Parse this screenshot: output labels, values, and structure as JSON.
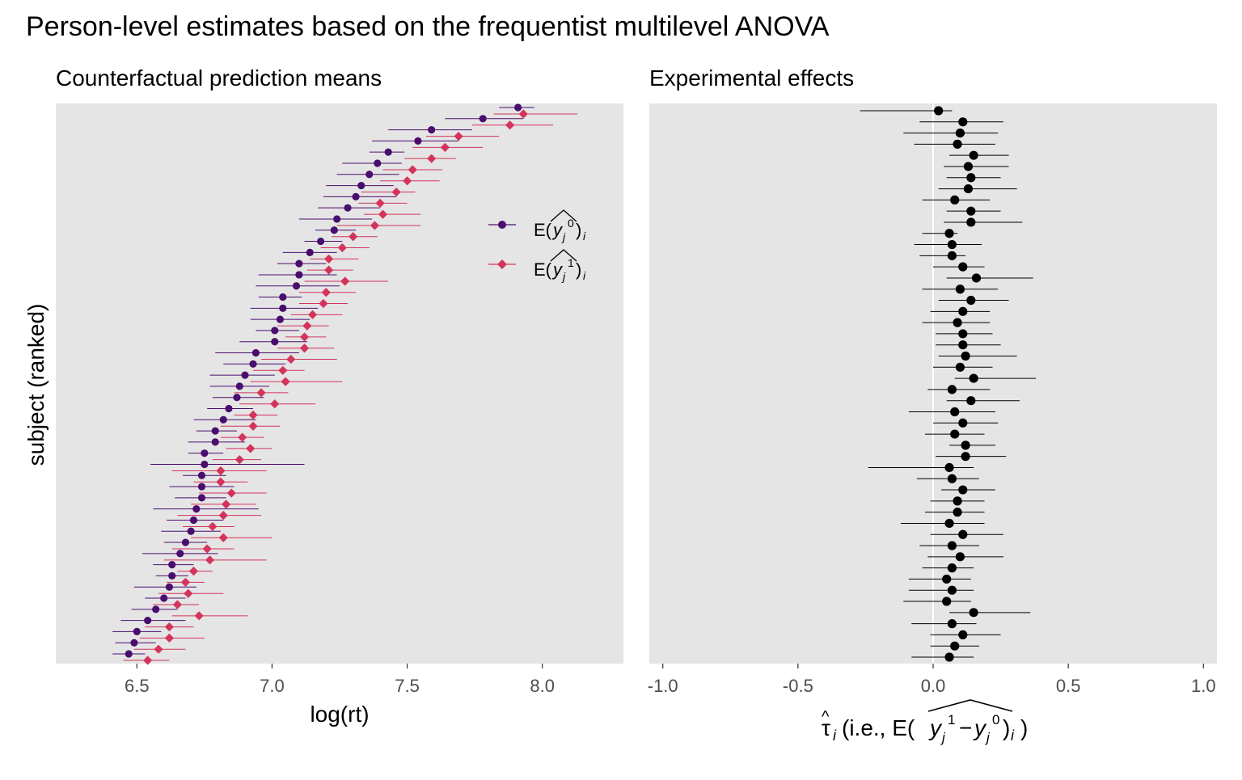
{
  "title": "Person-level estimates based on the frequentist multilevel ANOVA",
  "y_axis_label": "subject (ranked)",
  "colors": {
    "y0": "#4a0d6e",
    "y1": "#d4345c",
    "effect": "#000000",
    "panel_bg": "#e5e5e5",
    "grid": "#ffffff"
  },
  "chart_data": [
    {
      "type": "scatter",
      "subtitle": "Counterfactual prediction means",
      "xlabel": "log(rt)",
      "ylabel": "subject (ranked)",
      "xlim": [
        6.2,
        8.3
      ],
      "xticks": [
        "6.5",
        "7.0",
        "7.5",
        "8.0"
      ],
      "grid": false,
      "legend": {
        "position": "right-inside",
        "items": [
          "E(y_j^0)_i",
          "E(y_j^1)_i"
        ]
      },
      "series": [
        {
          "name": "E(y_j^0)_i",
          "marker": "circle",
          "values": [
            7.91,
            7.78,
            7.59,
            7.54,
            7.43,
            7.39,
            7.36,
            7.33,
            7.31,
            7.28,
            7.24,
            7.23,
            7.18,
            7.14,
            7.1,
            7.1,
            7.09,
            7.04,
            7.04,
            7.03,
            7.01,
            7.01,
            6.94,
            6.93,
            6.9,
            6.88,
            6.87,
            6.84,
            6.82,
            6.79,
            6.79,
            6.75,
            6.75,
            6.74,
            6.74,
            6.74,
            6.72,
            6.71,
            6.7,
            6.68,
            6.66,
            6.63,
            6.63,
            6.62,
            6.6,
            6.57,
            6.54,
            6.5,
            6.49,
            6.47
          ],
          "ci_low": [
            7.84,
            7.64,
            7.43,
            7.37,
            7.36,
            7.26,
            7.24,
            7.2,
            7.19,
            7.17,
            7.1,
            7.16,
            7.12,
            7.04,
            7.02,
            6.95,
            6.94,
            6.95,
            6.92,
            6.92,
            6.94,
            6.88,
            6.79,
            6.82,
            6.77,
            6.77,
            6.78,
            6.76,
            6.71,
            6.72,
            6.69,
            6.69,
            6.55,
            6.67,
            6.62,
            6.64,
            6.56,
            6.61,
            6.59,
            6.6,
            6.52,
            6.56,
            6.57,
            6.49,
            6.53,
            6.48,
            6.44,
            6.41,
            6.42,
            6.41
          ],
          "ci_high": [
            7.97,
            7.93,
            7.74,
            7.69,
            7.49,
            7.48,
            7.47,
            7.45,
            7.46,
            7.4,
            7.37,
            7.31,
            7.26,
            7.24,
            7.2,
            7.24,
            7.25,
            7.11,
            7.17,
            7.14,
            7.1,
            7.13,
            7.1,
            7.05,
            7.01,
            6.99,
            6.97,
            6.93,
            6.94,
            6.87,
            6.9,
            6.82,
            7.12,
            6.83,
            6.86,
            6.83,
            6.95,
            6.82,
            6.81,
            6.76,
            6.8,
            6.71,
            6.69,
            6.72,
            6.68,
            6.65,
            6.68,
            6.59,
            6.57,
            6.53
          ]
        },
        {
          "name": "E(y_j^1)_i",
          "marker": "diamond",
          "values": [
            7.93,
            7.88,
            7.69,
            7.64,
            7.59,
            7.52,
            7.5,
            7.46,
            7.4,
            7.41,
            7.38,
            7.3,
            7.26,
            7.21,
            7.21,
            7.27,
            7.2,
            7.19,
            7.15,
            7.13,
            7.12,
            7.12,
            7.07,
            7.04,
            7.05,
            6.96,
            7.01,
            6.93,
            6.93,
            6.89,
            6.92,
            6.88,
            6.81,
            6.81,
            6.85,
            6.83,
            6.82,
            6.78,
            6.82,
            6.76,
            6.77,
            6.71,
            6.68,
            6.69,
            6.65,
            6.73,
            6.62,
            6.62,
            6.58,
            6.54
          ],
          "ci_low": [
            7.82,
            7.74,
            7.57,
            7.52,
            7.49,
            7.41,
            7.4,
            7.33,
            7.32,
            7.34,
            7.24,
            7.22,
            7.18,
            7.14,
            7.13,
            7.12,
            7.1,
            7.1,
            7.07,
            7.02,
            7.05,
            7.02,
            6.96,
            6.93,
            6.92,
            6.86,
            6.88,
            6.86,
            6.81,
            6.81,
            6.83,
            6.78,
            6.63,
            6.71,
            6.73,
            6.7,
            6.65,
            6.67,
            6.7,
            6.63,
            6.6,
            6.65,
            6.61,
            6.58,
            6.56,
            6.63,
            6.53,
            6.51,
            6.49,
            6.45
          ],
          "ci_high": [
            8.13,
            8.04,
            7.84,
            7.78,
            7.68,
            7.63,
            7.62,
            7.53,
            7.5,
            7.55,
            7.55,
            7.39,
            7.36,
            7.32,
            7.3,
            7.43,
            7.31,
            7.28,
            7.26,
            7.21,
            7.2,
            7.23,
            7.24,
            7.12,
            7.26,
            7.06,
            7.16,
            7.02,
            7.03,
            6.97,
            7.0,
            6.96,
            6.98,
            6.91,
            6.98,
            6.94,
            6.96,
            6.86,
            7.0,
            6.86,
            6.98,
            6.78,
            6.75,
            6.82,
            6.73,
            6.91,
            6.71,
            6.75,
            6.68,
            6.62
          ]
        }
      ]
    },
    {
      "type": "scatter",
      "subtitle": "Experimental effects",
      "xlabel": "τ̂_i (i.e., E(y_j^1 − y_j^0)_i)",
      "xlim": [
        -1.05,
        1.05
      ],
      "xticks": [
        "-1.0",
        "-0.5",
        "0.0",
        "0.5",
        "1.0"
      ],
      "vline": 0,
      "grid": false,
      "series": [
        {
          "name": "",
          "marker": "circle",
          "values": [
            0.02,
            0.11,
            0.1,
            0.09,
            0.15,
            0.13,
            0.14,
            0.13,
            0.08,
            0.14,
            0.14,
            0.06,
            0.07,
            0.07,
            0.11,
            0.16,
            0.1,
            0.14,
            0.11,
            0.09,
            0.11,
            0.11,
            0.12,
            0.1,
            0.15,
            0.07,
            0.14,
            0.08,
            0.11,
            0.08,
            0.12,
            0.12,
            0.06,
            0.07,
            0.11,
            0.09,
            0.09,
            0.06,
            0.11,
            0.07,
            0.1,
            0.07,
            0.05,
            0.07,
            0.05,
            0.15,
            0.07,
            0.11,
            0.08,
            0.06
          ],
          "ci_low": [
            -0.27,
            -0.05,
            -0.11,
            -0.07,
            0.06,
            0.04,
            0.05,
            0.02,
            -0.04,
            0.05,
            0.04,
            -0.04,
            -0.07,
            -0.05,
            0.0,
            0.05,
            -0.04,
            0.02,
            -0.01,
            -0.04,
            0.01,
            0.01,
            0.02,
            0.0,
            0.08,
            -0.02,
            0.05,
            -0.09,
            0.0,
            -0.03,
            0.06,
            0.01,
            -0.24,
            -0.06,
            0.03,
            -0.01,
            -0.03,
            -0.12,
            -0.01,
            -0.05,
            -0.02,
            -0.04,
            -0.09,
            -0.09,
            -0.11,
            0.06,
            -0.08,
            -0.01,
            -0.01,
            -0.08
          ],
          "ci_high": [
            0.07,
            0.26,
            0.24,
            0.23,
            0.28,
            0.28,
            0.25,
            0.31,
            0.21,
            0.25,
            0.33,
            0.09,
            0.18,
            0.12,
            0.19,
            0.37,
            0.24,
            0.28,
            0.21,
            0.21,
            0.22,
            0.25,
            0.31,
            0.22,
            0.38,
            0.21,
            0.32,
            0.23,
            0.24,
            0.19,
            0.23,
            0.27,
            0.15,
            0.17,
            0.23,
            0.19,
            0.19,
            0.19,
            0.26,
            0.17,
            0.26,
            0.15,
            0.14,
            0.15,
            0.14,
            0.36,
            0.16,
            0.25,
            0.17,
            0.15
          ]
        }
      ]
    }
  ]
}
